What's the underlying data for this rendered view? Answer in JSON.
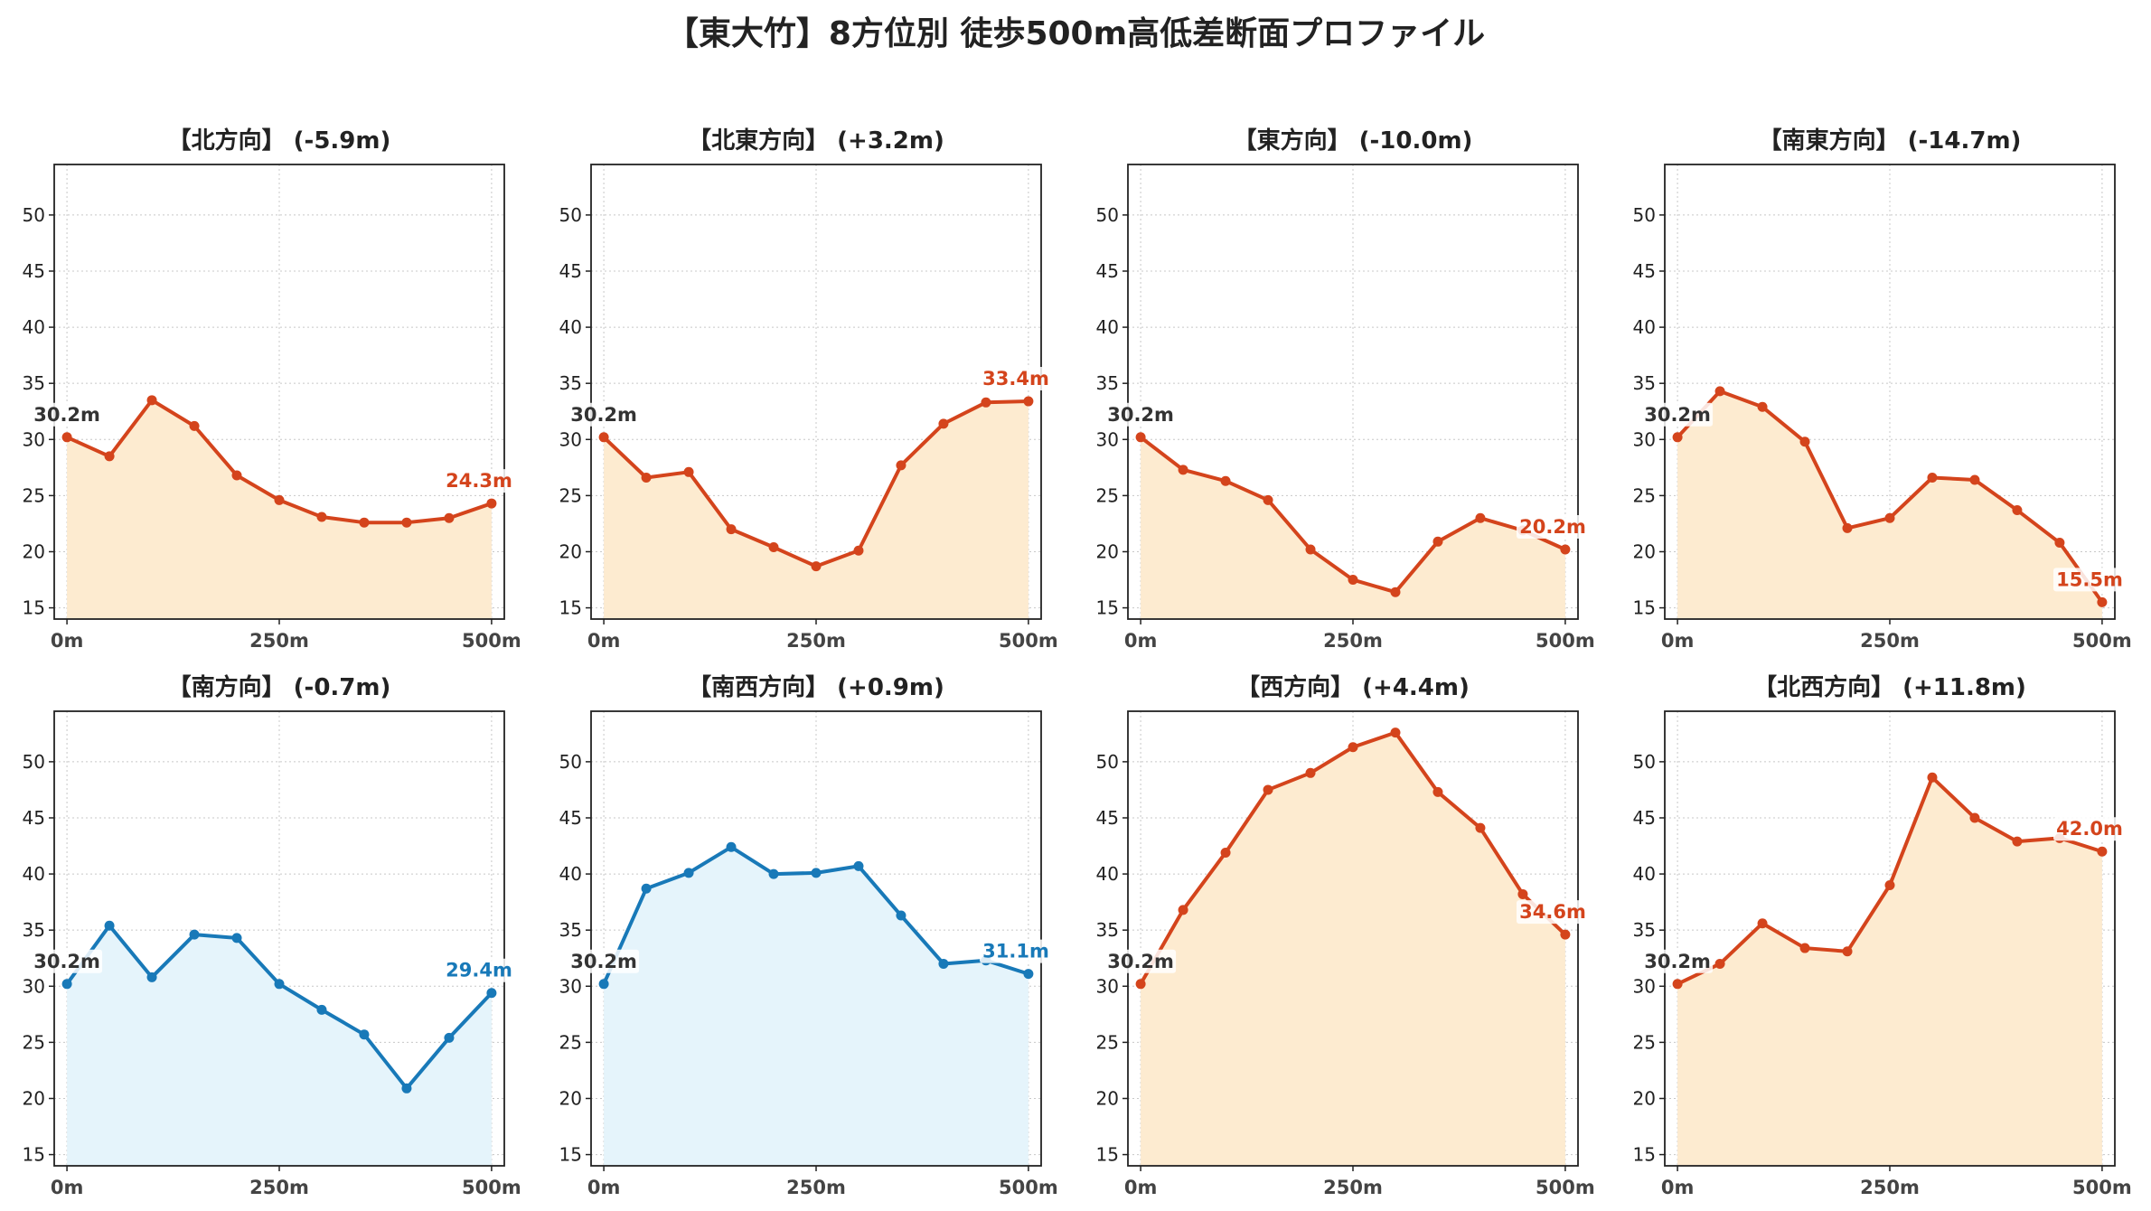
{
  "figure_title": "【東大竹】8方位別 徒歩500m高低差断面プロファイル",
  "colors": {
    "descent_line": "#d4441c",
    "descent_fill": "#fdebd0",
    "ascent_line": "#1879b8",
    "ascent_fill": "#e5f4fb",
    "start_label": "#333333",
    "grid": "#c8c8c8"
  },
  "chart_data": [
    {
      "type": "area",
      "title": "【北方向】 (-5.9m)",
      "color_scheme": "descent",
      "x": [
        0,
        50,
        100,
        150,
        200,
        250,
        300,
        350,
        400,
        450,
        500
      ],
      "y": [
        30.2,
        28.5,
        33.5,
        31.2,
        26.8,
        24.6,
        23.1,
        22.6,
        22.6,
        23.0,
        24.3
      ],
      "start_label": "30.2m",
      "end_label": "24.3m",
      "xticks": [
        "0m",
        "250m",
        "500m"
      ],
      "yticks": [
        15,
        20,
        25,
        30,
        35,
        40,
        45,
        50
      ],
      "xlim": [
        -15,
        515
      ],
      "ylim": [
        14,
        54.5
      ],
      "grid": true
    },
    {
      "type": "area",
      "title": "【北東方向】 (+3.2m)",
      "color_scheme": "descent",
      "x": [
        0,
        50,
        100,
        150,
        200,
        250,
        300,
        350,
        400,
        450,
        500
      ],
      "y": [
        30.2,
        26.6,
        27.1,
        22.0,
        20.4,
        18.7,
        20.1,
        27.7,
        31.4,
        33.3,
        33.4
      ],
      "start_label": "30.2m",
      "end_label": "33.4m",
      "xticks": [
        "0m",
        "250m",
        "500m"
      ],
      "yticks": [
        15,
        20,
        25,
        30,
        35,
        40,
        45,
        50
      ],
      "xlim": [
        -15,
        515
      ],
      "ylim": [
        14,
        54.5
      ],
      "grid": true
    },
    {
      "type": "area",
      "title": "【東方向】 (-10.0m)",
      "color_scheme": "descent",
      "x": [
        0,
        50,
        100,
        150,
        200,
        250,
        300,
        350,
        400,
        450,
        500
      ],
      "y": [
        30.2,
        27.3,
        26.3,
        24.6,
        20.2,
        17.5,
        16.4,
        20.9,
        23.0,
        21.9,
        20.2
      ],
      "start_label": "30.2m",
      "end_label": "20.2m",
      "xticks": [
        "0m",
        "250m",
        "500m"
      ],
      "yticks": [
        15,
        20,
        25,
        30,
        35,
        40,
        45,
        50
      ],
      "xlim": [
        -15,
        515
      ],
      "ylim": [
        14,
        54.5
      ],
      "grid": true
    },
    {
      "type": "area",
      "title": "【南東方向】 (-14.7m)",
      "color_scheme": "descent",
      "x": [
        0,
        50,
        100,
        150,
        200,
        250,
        300,
        350,
        400,
        450,
        500
      ],
      "y": [
        30.2,
        34.3,
        32.9,
        29.8,
        22.1,
        23.0,
        26.6,
        26.4,
        23.7,
        20.8,
        15.5
      ],
      "start_label": "30.2m",
      "end_label": "15.5m",
      "xticks": [
        "0m",
        "250m",
        "500m"
      ],
      "yticks": [
        15,
        20,
        25,
        30,
        35,
        40,
        45,
        50
      ],
      "xlim": [
        -15,
        515
      ],
      "ylim": [
        14,
        54.5
      ],
      "grid": true
    },
    {
      "type": "area",
      "title": "【南方向】 (-0.7m)",
      "color_scheme": "ascent",
      "x": [
        0,
        50,
        100,
        150,
        200,
        250,
        300,
        350,
        400,
        450,
        500
      ],
      "y": [
        30.2,
        35.4,
        30.8,
        34.6,
        34.3,
        30.2,
        27.9,
        25.7,
        20.9,
        25.4,
        29.4
      ],
      "start_label": "30.2m",
      "end_label": "29.4m",
      "xticks": [
        "0m",
        "250m",
        "500m"
      ],
      "yticks": [
        15,
        20,
        25,
        30,
        35,
        40,
        45,
        50
      ],
      "xlim": [
        -15,
        515
      ],
      "ylim": [
        14,
        54.5
      ],
      "grid": true
    },
    {
      "type": "area",
      "title": "【南西方向】 (+0.9m)",
      "color_scheme": "ascent",
      "x": [
        0,
        50,
        100,
        150,
        200,
        250,
        300,
        350,
        400,
        450,
        500
      ],
      "y": [
        30.2,
        38.7,
        40.1,
        42.4,
        40.0,
        40.1,
        40.7,
        36.3,
        32.0,
        32.3,
        31.1
      ],
      "start_label": "30.2m",
      "end_label": "31.1m",
      "xticks": [
        "0m",
        "250m",
        "500m"
      ],
      "yticks": [
        15,
        20,
        25,
        30,
        35,
        40,
        45,
        50
      ],
      "xlim": [
        -15,
        515
      ],
      "ylim": [
        14,
        54.5
      ],
      "grid": true
    },
    {
      "type": "area",
      "title": "【西方向】 (+4.4m)",
      "color_scheme": "descent",
      "x": [
        0,
        50,
        100,
        150,
        200,
        250,
        300,
        350,
        400,
        450,
        500
      ],
      "y": [
        30.2,
        36.8,
        41.9,
        47.5,
        49.0,
        51.3,
        52.6,
        47.3,
        44.1,
        38.2,
        34.6
      ],
      "start_label": "30.2m",
      "end_label": "34.6m",
      "xticks": [
        "0m",
        "250m",
        "500m"
      ],
      "yticks": [
        15,
        20,
        25,
        30,
        35,
        40,
        45,
        50
      ],
      "xlim": [
        -15,
        515
      ],
      "ylim": [
        14,
        54.5
      ],
      "grid": true
    },
    {
      "type": "area",
      "title": "【北西方向】 (+11.8m)",
      "color_scheme": "descent",
      "x": [
        0,
        50,
        100,
        150,
        200,
        250,
        300,
        350,
        400,
        450,
        500
      ],
      "y": [
        30.2,
        32.0,
        35.6,
        33.4,
        33.1,
        39.0,
        48.6,
        45.0,
        42.9,
        43.2,
        42.0
      ],
      "start_label": "30.2m",
      "end_label": "42.0m",
      "xticks": [
        "0m",
        "250m",
        "500m"
      ],
      "yticks": [
        15,
        20,
        25,
        30,
        35,
        40,
        45,
        50
      ],
      "xlim": [
        -15,
        515
      ],
      "ylim": [
        14,
        54.5
      ],
      "grid": true
    }
  ]
}
